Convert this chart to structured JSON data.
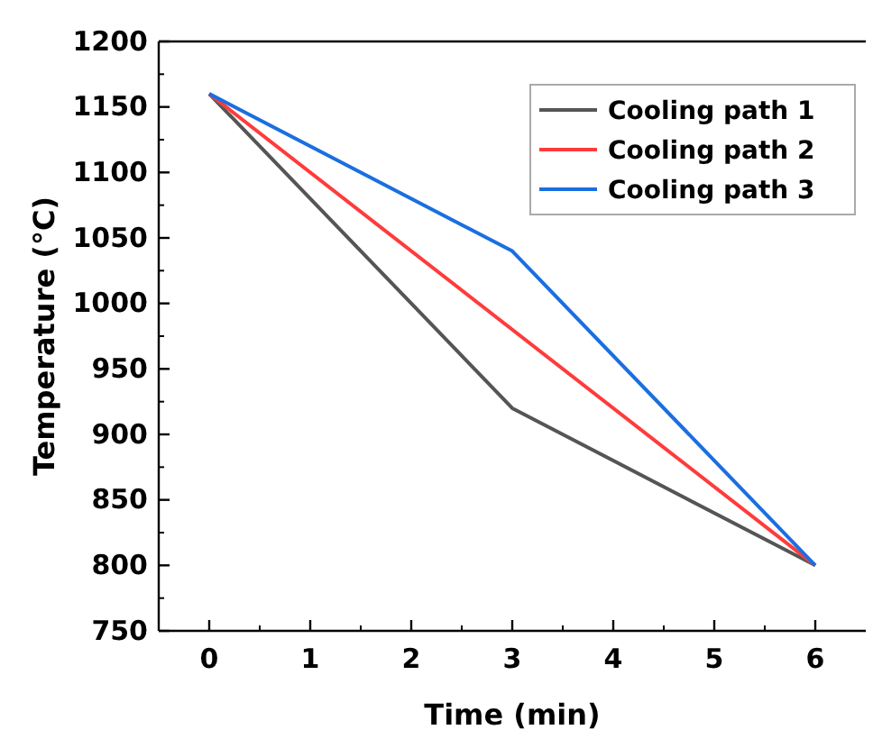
{
  "chart_data": {
    "type": "line",
    "xlabel": "Time (min)",
    "ylabel": "Temperature (°C)",
    "xlim": [
      -0.5,
      6.5
    ],
    "xticks": [
      0,
      1,
      2,
      3,
      4,
      5,
      6
    ],
    "ylim": [
      750,
      1200
    ],
    "yticks": [
      750,
      800,
      850,
      900,
      950,
      1000,
      1050,
      1100,
      1150,
      1200
    ],
    "legend": "top right",
    "grid": false,
    "series": [
      {
        "name": "Cooling path 1",
        "color": "#555555",
        "x": [
          0,
          3,
          6
        ],
        "values": [
          1160,
          920,
          800
        ]
      },
      {
        "name": "Cooling path 2",
        "color": "#ff3b3b",
        "x": [
          0,
          6
        ],
        "values": [
          1160,
          800
        ]
      },
      {
        "name": "Cooling path 3",
        "color": "#1a6fe0",
        "x": [
          0,
          3,
          6
        ],
        "values": [
          1160,
          1040,
          800
        ]
      }
    ]
  }
}
